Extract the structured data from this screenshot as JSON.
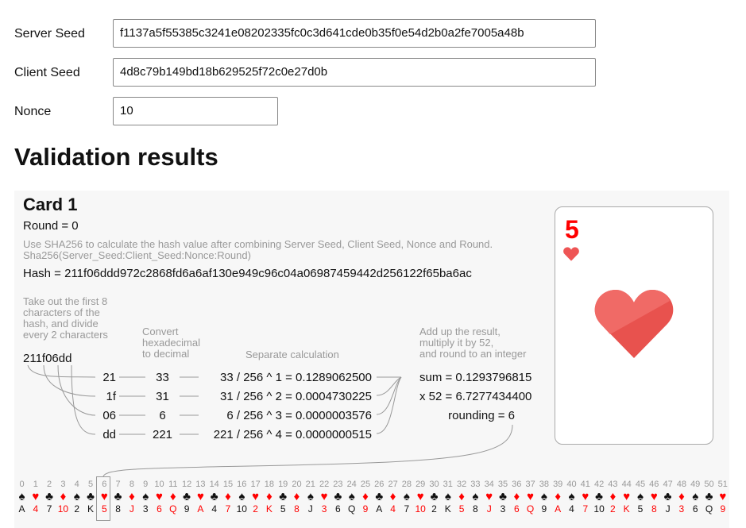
{
  "form": {
    "server_seed_label": "Server Seed",
    "server_seed_value": "f1137a5f55385c3241e08202335fc0c3d641cde0b35f0e54d2b0a2fe7005a48b",
    "client_seed_label": "Client Seed",
    "client_seed_value": "4d8c79b149bd18b629525f72c0e27d0b",
    "nonce_label": "Nonce",
    "nonce_value": "10"
  },
  "results": {
    "heading": "Validation results",
    "card_title": "Card 1",
    "round": "Round = 0",
    "hint_line1": "Use SHA256 to calculate the hash value after combining Server Seed, Client Seed, Nonce and Round.",
    "hint_line2": "Sha256(Server_Seed:Client_Seed:Nonce:Round)",
    "hash": "Hash = 211f06ddd972c2868fd6a6af130e949c96c04a06987459442d256122f65ba6ac",
    "step1": [
      "Take out the first 8",
      "characters of the",
      "hash, and divide",
      "every 2 characters"
    ],
    "step2": [
      "Convert",
      "hexadecimal",
      "to decimal"
    ],
    "step3": "Separate calculation",
    "step4": [
      "Add up the result,",
      "multiply it by 52,",
      "and round to an integer"
    ],
    "first8": "211f06dd",
    "rows": [
      {
        "hex": "21",
        "dec": "33",
        "calc": "33 / 256 ^ 1 = 0.1289062500"
      },
      {
        "hex": "1f",
        "dec": "31",
        "calc": "31 / 256 ^ 2 = 0.0004730225"
      },
      {
        "hex": "06",
        "dec": "6",
        "calc": "6 / 256 ^ 3 = 0.0000003576"
      },
      {
        "hex": "dd",
        "dec": "221",
        "calc": "221 / 256 ^ 4 = 0.0000000515"
      }
    ],
    "sum": "sum = 0.1293796815",
    "times52": "x 52 = 6.7277434400",
    "rounding": "rounding = 6",
    "result_card": {
      "rank": "5",
      "suit": "heart",
      "color": "#ff0000",
      "heart_color": "#ee5555"
    }
  },
  "deck": {
    "selected_index": 6,
    "cards": [
      [
        "spade",
        "A"
      ],
      [
        "heart",
        "4"
      ],
      [
        "club",
        "7"
      ],
      [
        "diamond",
        "10"
      ],
      [
        "spade",
        "2"
      ],
      [
        "club",
        "K"
      ],
      [
        "heart",
        "5"
      ],
      [
        "club",
        "8"
      ],
      [
        "diamond",
        "J"
      ],
      [
        "spade",
        "3"
      ],
      [
        "heart",
        "6"
      ],
      [
        "diamond",
        "Q"
      ],
      [
        "club",
        "9"
      ],
      [
        "heart",
        "A"
      ],
      [
        "club",
        "4"
      ],
      [
        "diamond",
        "7"
      ],
      [
        "spade",
        "10"
      ],
      [
        "heart",
        "2"
      ],
      [
        "diamond",
        "K"
      ],
      [
        "club",
        "5"
      ],
      [
        "diamond",
        "8"
      ],
      [
        "spade",
        "J"
      ],
      [
        "heart",
        "3"
      ],
      [
        "club",
        "6"
      ],
      [
        "spade",
        "Q"
      ],
      [
        "diamond",
        "9"
      ],
      [
        "club",
        "A"
      ],
      [
        "diamond",
        "4"
      ],
      [
        "spade",
        "7"
      ],
      [
        "heart",
        "10"
      ],
      [
        "club",
        "2"
      ],
      [
        "spade",
        "K"
      ],
      [
        "diamond",
        "5"
      ],
      [
        "spade",
        "8"
      ],
      [
        "heart",
        "J"
      ],
      [
        "club",
        "3"
      ],
      [
        "diamond",
        "6"
      ],
      [
        "heart",
        "Q"
      ],
      [
        "spade",
        "9"
      ],
      [
        "diamond",
        "A"
      ],
      [
        "spade",
        "4"
      ],
      [
        "heart",
        "7"
      ],
      [
        "club",
        "10"
      ],
      [
        "diamond",
        "2"
      ],
      [
        "heart",
        "K"
      ],
      [
        "spade",
        "5"
      ],
      [
        "heart",
        "8"
      ],
      [
        "club",
        "J"
      ],
      [
        "diamond",
        "3"
      ],
      [
        "spade",
        "6"
      ],
      [
        "club",
        "Q"
      ],
      [
        "heart",
        "9"
      ]
    ]
  }
}
